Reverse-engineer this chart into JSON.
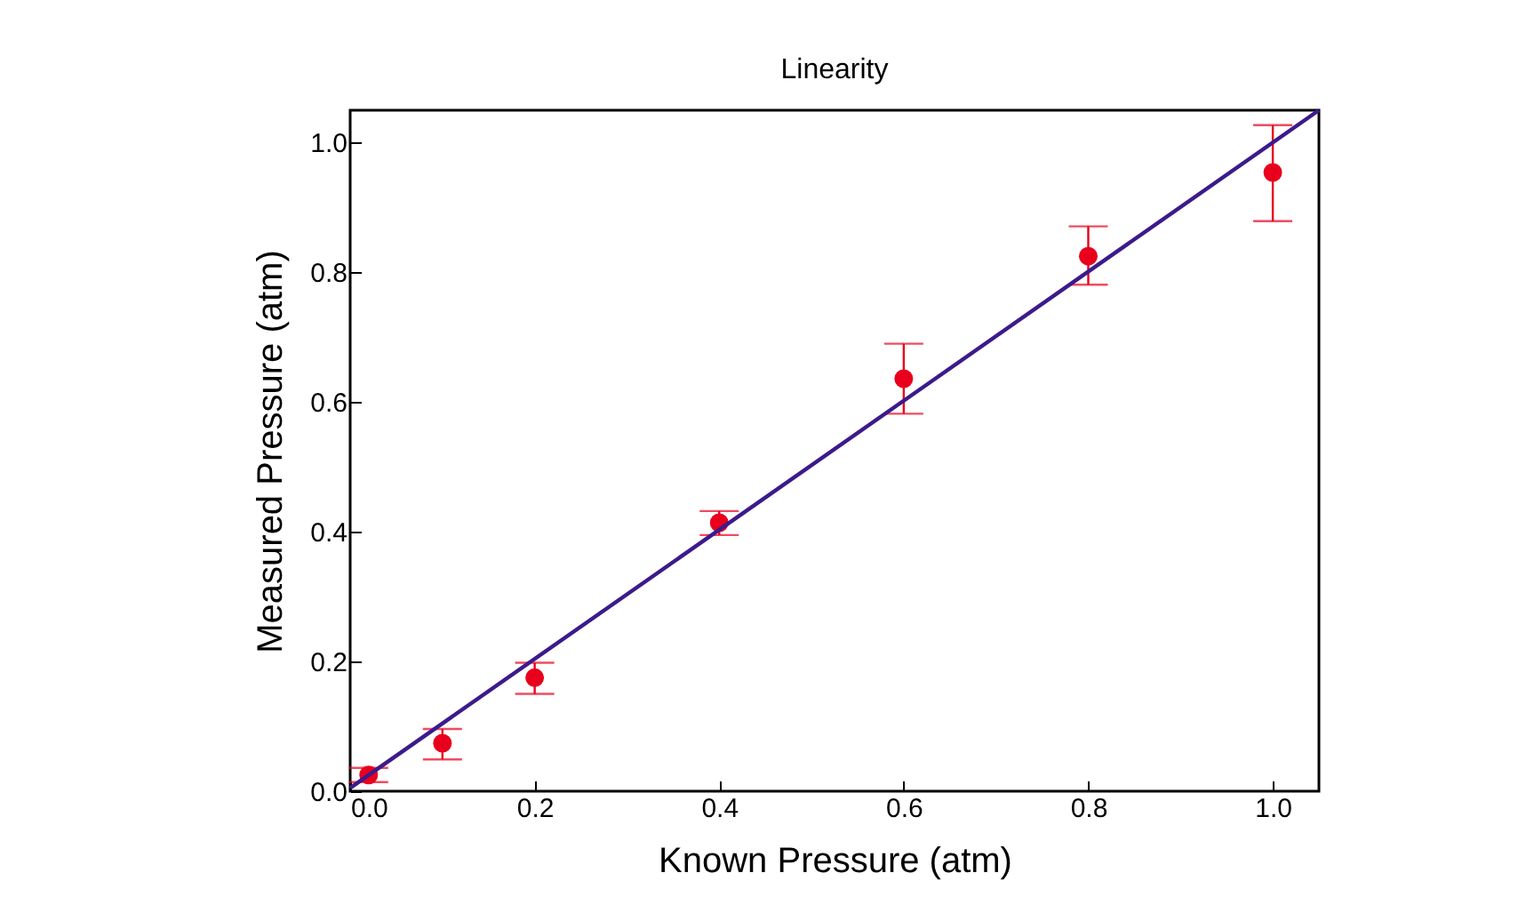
{
  "chart_data": {
    "type": "scatter",
    "title": "Linearity",
    "xlabel": "Known Pressure (atm)",
    "ylabel": "Measured Pressure (atm)",
    "x": [
      0.02,
      0.1,
      0.2,
      0.4,
      0.6,
      0.8,
      1.0
    ],
    "series": [
      {
        "color": "#e8001c",
        "values": [
          0.025,
          0.074,
          0.175,
          0.414,
          0.636,
          0.825,
          0.954
        ],
        "errors": [
          [
            0.014,
            0.036
          ],
          [
            0.049,
            0.096
          ],
          [
            0.15,
            0.198
          ],
          [
            0.395,
            0.432
          ],
          [
            0.582,
            0.69
          ],
          [
            0.781,
            0.871
          ],
          [
            0.879,
            1.027
          ]
        ]
      },
      {
        "type": "line",
        "color": "#3c1a8c",
        "marker": "none",
        "x": [
          0,
          1.05
        ],
        "values": [
          0.005,
          1.05
        ]
      }
    ],
    "xlim": [
      0,
      1.05
    ],
    "ylim": [
      0,
      1.05
    ],
    "xticks": [
      {
        "value": 0,
        "label": "0.0"
      },
      0.2,
      0.4,
      0.6,
      0.8,
      {
        "value": 1,
        "label": "1.0"
      }
    ],
    "yticks": [
      {
        "value": 0,
        "label": "0.0"
      },
      0.2,
      0.4,
      0.6,
      0.8,
      {
        "value": 1,
        "label": "1.0"
      }
    ],
    "grid": false,
    "marker": "circle"
  }
}
